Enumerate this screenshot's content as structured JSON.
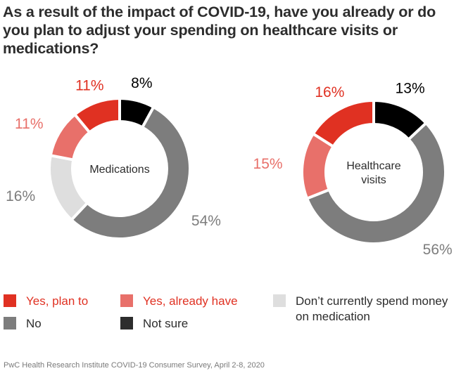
{
  "chart_data": {
    "type": "pie",
    "subtype": "donut",
    "title": "As a result of the impact of COVID-19, have you already or do you plan to adjust your spending on healthcare visits or medications?",
    "categories": [
      "Not sure",
      "No",
      "Don’t currently spend money on medication",
      "Yes, already have",
      "Yes, plan to"
    ],
    "charts": [
      {
        "name": "Medications",
        "center_label": [
          "Medications"
        ],
        "slices": [
          {
            "label": "Not sure",
            "value": 8,
            "text": "8%",
            "color": "#000000",
            "label_color": "#000000"
          },
          {
            "label": "No",
            "value": 54,
            "text": "54%",
            "color": "#7d7d7d",
            "label_color": "#7d7d7d"
          },
          {
            "label": "Don’t currently spend money on medication",
            "value": 16,
            "text": "16%",
            "color": "#dedede",
            "label_color": "#7d7d7d"
          },
          {
            "label": "Yes, already have",
            "value": 11,
            "text": "11%",
            "color": "#e8706a",
            "label_color": "#e8706a"
          },
          {
            "label": "Yes, plan to",
            "value": 11,
            "text": "11%",
            "color": "#e03122",
            "label_color": "#e03122"
          }
        ]
      },
      {
        "name": "Healthcare visits",
        "center_label": [
          "Healthcare",
          "visits"
        ],
        "slices": [
          {
            "label": "Not sure",
            "value": 13,
            "text": "13%",
            "color": "#000000",
            "label_color": "#000000"
          },
          {
            "label": "No",
            "value": 56,
            "text": "56%",
            "color": "#7d7d7d",
            "label_color": "#7d7d7d"
          },
          {
            "label": "Yes, already have",
            "value": 15,
            "text": "15%",
            "color": "#e8706a",
            "label_color": "#e8706a"
          },
          {
            "label": "Yes, plan to",
            "value": 16,
            "text": "16%",
            "color": "#e03122",
            "label_color": "#e03122"
          }
        ]
      }
    ],
    "legend": [
      {
        "label": "Yes, plan to",
        "color": "#e03122",
        "text_color": "#e03122"
      },
      {
        "label": "Yes, already have",
        "color": "#e8706a",
        "text_color": "#e03122"
      },
      {
        "label": "Don’t currently spend money on medication",
        "color": "#dedede",
        "text_color": "#2d2d2d"
      },
      {
        "label": "No",
        "color": "#7d7d7d",
        "text_color": "#2d2d2d"
      },
      {
        "label": "Not sure",
        "color": "#2d2d2d",
        "text_color": "#2d2d2d"
      }
    ],
    "legend_placement": "bottom",
    "source": "PwC Health Research Institute COVID-19 Consumer Survey, April 2-8, 2020"
  }
}
